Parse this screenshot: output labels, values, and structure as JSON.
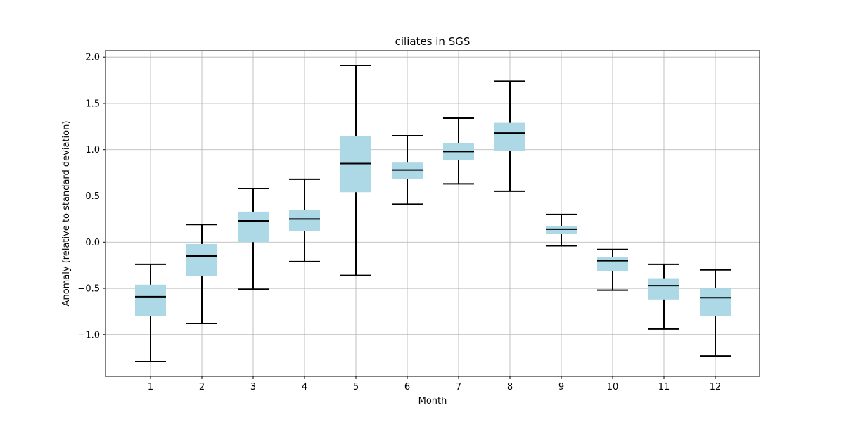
{
  "chart_data": {
    "type": "box",
    "title": "ciliates in SGS",
    "xlabel": "Month",
    "ylabel": "Anomaly (relative to standard deviation)",
    "categories": [
      "1",
      "2",
      "3",
      "4",
      "5",
      "6",
      "7",
      "8",
      "9",
      "10",
      "11",
      "12"
    ],
    "ylim": [
      -1.45,
      2.07
    ],
    "yticks": [
      -1.0,
      -0.5,
      0.0,
      0.5,
      1.0,
      1.5,
      2.0
    ],
    "ytick_labels": [
      "−1.0",
      "−0.5",
      "0.0",
      "0.5",
      "1.0",
      "1.5",
      "2.0"
    ],
    "grid": true,
    "box_color": "#add8e6",
    "line_color": "#000000",
    "boxes": [
      {
        "month": "1",
        "whisker_low": -1.29,
        "q1": -0.8,
        "median": -0.59,
        "q3": -0.46,
        "whisker_high": -0.24
      },
      {
        "month": "2",
        "whisker_low": -0.88,
        "q1": -0.37,
        "median": -0.15,
        "q3": -0.02,
        "whisker_high": 0.19
      },
      {
        "month": "3",
        "whisker_low": -0.51,
        "q1": 0.0,
        "median": 0.23,
        "q3": 0.33,
        "whisker_high": 0.58
      },
      {
        "month": "4",
        "whisker_low": -0.21,
        "q1": 0.12,
        "median": 0.25,
        "q3": 0.35,
        "whisker_high": 0.68
      },
      {
        "month": "5",
        "whisker_low": -0.36,
        "q1": 0.54,
        "median": 0.85,
        "q3": 1.15,
        "whisker_high": 1.91
      },
      {
        "month": "6",
        "whisker_low": 0.41,
        "q1": 0.68,
        "median": 0.78,
        "q3": 0.86,
        "whisker_high": 1.15
      },
      {
        "month": "7",
        "whisker_low": 0.63,
        "q1": 0.89,
        "median": 0.98,
        "q3": 1.07,
        "whisker_high": 1.34
      },
      {
        "month": "8",
        "whisker_low": 0.55,
        "q1": 0.99,
        "median": 1.18,
        "q3": 1.29,
        "whisker_high": 1.74
      },
      {
        "month": "9",
        "whisker_low": -0.04,
        "q1": 0.09,
        "median": 0.14,
        "q3": 0.17,
        "whisker_high": 0.3
      },
      {
        "month": "10",
        "whisker_low": -0.52,
        "q1": -0.31,
        "median": -0.2,
        "q3": -0.16,
        "whisker_high": -0.08
      },
      {
        "month": "11",
        "whisker_low": -0.94,
        "q1": -0.62,
        "median": -0.47,
        "q3": -0.39,
        "whisker_high": -0.24
      },
      {
        "month": "12",
        "whisker_low": -1.23,
        "q1": -0.8,
        "median": -0.6,
        "q3": -0.5,
        "whisker_high": -0.3
      }
    ]
  }
}
